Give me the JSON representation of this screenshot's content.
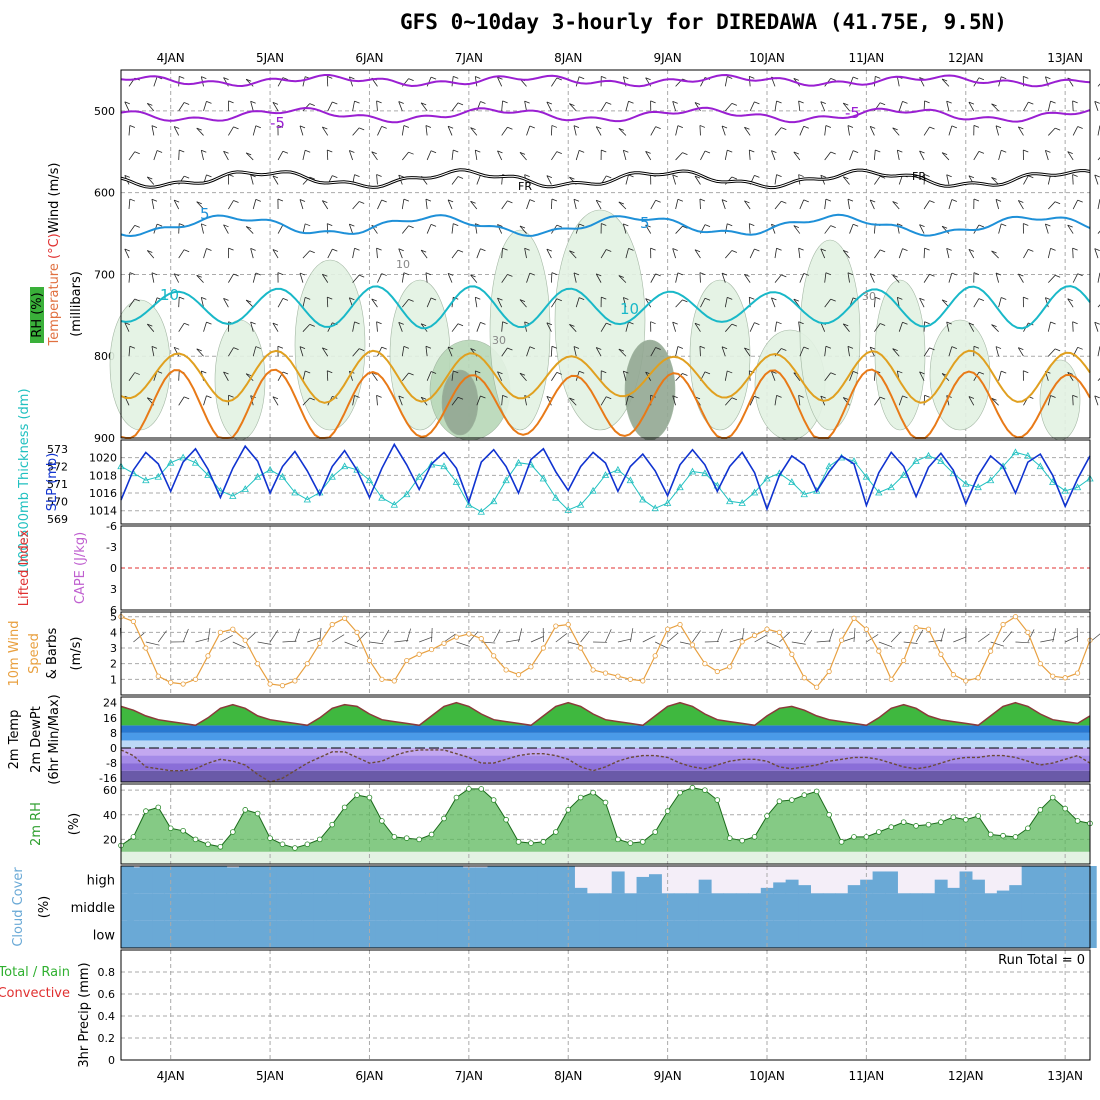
{
  "title": "GFS 0~10day 3-hourly for DIREDAWA (41.75E, 9.5N)",
  "colors": {
    "wind_purple": "#9a1fd2",
    "freezing": "#000000",
    "temp_blue": "#1e90d8",
    "temp_teal": "#19b8c8",
    "temp_gold": "#e0a020",
    "temp_orange": "#e87a18",
    "rh_light": "#e3f2e3",
    "rh_mid": "#b8d8b8",
    "rh_dark": "#93a893",
    "slp": "#1033d0",
    "thickness": "#20c0c0",
    "lifted": "#e03030",
    "cape": "#c060d0",
    "wind10": "#e8a040",
    "rh2m": "#30a030",
    "cloud": "#6aa9d6",
    "rain": "#30b030",
    "convective": "#e03030"
  },
  "chart_data": [
    {
      "type": "line",
      "panel": "upper-air",
      "title": "Temperature (°C) / RH (%) / Wind (m/s)",
      "ylabel": "(millibars)",
      "label_rh": "RH (%)",
      "label_temperature": "Temperature",
      "label_temperature_unit": "(°C)",
      "label_wind": "Wind (m/s)",
      "ylim": [
        900,
        450
      ],
      "yticks": [
        500,
        600,
        700,
        800,
        900
      ],
      "xlabels": [
        "4JAN",
        "5JAN",
        "6JAN",
        "7JAN",
        "8JAN",
        "9JAN",
        "10JAN",
        "11JAN",
        "12JAN",
        "13JAN"
      ],
      "x_start_day": 3.5,
      "x_end_day": 13.25,
      "contour_labels": [
        "-5",
        "-5",
        "FR",
        "FR",
        "5",
        "5",
        "10",
        "10",
        "10",
        "30",
        "30"
      ],
      "series": [
        {
          "name": "-5°C upper",
          "color": "#9a1fd2",
          "base": 463,
          "amp": 4,
          "kind": "flat"
        },
        {
          "name": "-5°C",
          "color": "#9a1fd2",
          "base": 505,
          "amp": 6,
          "kind": "flat"
        },
        {
          "name": "FR (0°C)",
          "color": "#000000",
          "base": 583,
          "amp": 8,
          "kind": "flat"
        },
        {
          "name": "5°C",
          "color": "#1e90d8",
          "base": 640,
          "amp": 10,
          "kind": "flat"
        },
        {
          "name": "10°C",
          "color": "#19b8c8",
          "base": 740,
          "amp": 22,
          "kind": "diurnal"
        },
        {
          "name": "15°C",
          "color": "#e0a020",
          "base": 825,
          "amp": 28,
          "kind": "diurnal"
        },
        {
          "name": "20°C",
          "color": "#e87a18",
          "base": 860,
          "amp": 40,
          "kind": "diurnal"
        }
      ]
    },
    {
      "type": "line",
      "panel": "slp-thickness",
      "label_thickness": "1000-500mb Thickness (dm)",
      "label_slp": "SLP (mb)",
      "thickness_ticks": [
        569,
        570,
        571,
        572,
        573
      ],
      "slp_ticks": [
        1014,
        1016,
        1018,
        1020
      ],
      "slp_values": [
        1015.2,
        1018.6,
        1020.6,
        1019.3,
        1016.2,
        1019.5,
        1021,
        1018.7,
        1015.5,
        1018.8,
        1021.3,
        1019.6,
        1016,
        1019,
        1020.7,
        1018.5,
        1015.8,
        1019,
        1020.8,
        1018.6,
        1015.5,
        1018.8,
        1021.5,
        1019.2,
        1016.4,
        1019.3,
        1020.6,
        1018.8,
        1015,
        1019.5,
        1020.9,
        1019,
        1016,
        1019.8,
        1021,
        1018.4,
        1016.3,
        1019,
        1020.6,
        1019.4,
        1016.2,
        1019,
        1020.4,
        1018.5,
        1015.7,
        1019.2,
        1020.9,
        1019.2,
        1016.2,
        1019,
        1020.6,
        1018.3,
        1014.2,
        1018,
        1020.2,
        1019.2,
        1016.2,
        1018.4,
        1020.2,
        1019.3,
        1014.6,
        1018.3,
        1020.6,
        1019,
        1015.6,
        1018.9,
        1020.5,
        1018.6,
        1014.8,
        1018,
        1020.2,
        1019,
        1016,
        1019.5,
        1020.4,
        1018,
        1014.5,
        1017.6,
        1020.2
      ],
      "thickness_values": [
        572,
        571.6,
        571.2,
        571.4,
        572.2,
        572.5,
        572.2,
        571.5,
        570.6,
        570.3,
        570.7,
        571.4,
        571.8,
        571.4,
        570.5,
        570.1,
        570.5,
        571.4,
        572,
        571.8,
        571.2,
        570.2,
        569.8,
        570.4,
        571.4,
        572.1,
        572,
        571.1,
        569.8,
        569.4,
        570,
        571.2,
        572.2,
        572.1,
        571.3,
        570.2,
        569.5,
        569.8,
        570.6,
        571.5,
        571.8,
        571.2,
        570.1,
        569.6,
        569.9,
        570.8,
        571.7,
        571.6,
        570.9,
        570,
        569.9,
        570.5,
        571.3,
        571.6,
        571.1,
        570.4,
        570.6,
        572,
        572.5,
        572.3,
        571.4,
        570.5,
        570.8,
        571.5,
        572.3,
        572.6,
        572.3,
        571.6,
        571,
        570.8,
        571.2,
        572,
        572.8,
        572.6,
        572,
        571.1,
        570.6,
        570.8,
        571.3
      ]
    },
    {
      "type": "line",
      "panel": "stability",
      "label_lifted": "Lifted Index",
      "label_cape": "CAPE (J/kg)",
      "li_ticks": [
        "-6",
        "-3",
        "0",
        "3",
        "6"
      ],
      "li_values": [],
      "cape_values": []
    },
    {
      "type": "line",
      "panel": "wind10m",
      "label_wind10": "10m Wind",
      "label_speed": "Speed",
      "label_barbs": "& Barbs",
      "unit": "(m/s)",
      "yticks": [
        1,
        2,
        3,
        4,
        5
      ],
      "values": [
        5,
        4.7,
        3,
        1.2,
        0.8,
        0.7,
        1,
        2.5,
        4,
        4.2,
        3.5,
        2,
        0.7,
        0.6,
        0.9,
        2,
        3.3,
        4.5,
        4.9,
        4,
        2.2,
        1,
        0.9,
        2.2,
        2.6,
        2.9,
        3.3,
        3.7,
        3.9,
        3.6,
        2.5,
        1.6,
        1.3,
        1.8,
        3,
        4.4,
        4.5,
        3,
        1.6,
        1.4,
        1.2,
        1,
        0.9,
        2.5,
        4.2,
        4.5,
        3.2,
        2,
        1.5,
        1.8,
        3.4,
        3.8,
        4.2,
        4,
        2.6,
        1.1,
        0.5,
        1.5,
        3.5,
        4.9,
        4.2,
        2.8,
        1,
        2.2,
        4.3,
        4.2,
        2.6,
        1.3,
        0.9,
        1.1,
        2.8,
        4.5,
        5,
        4,
        2,
        1.2,
        1.1,
        1.4,
        3.5
      ]
    },
    {
      "type": "area",
      "panel": "temp2m",
      "label_temp": "2m Temp",
      "label_dewpt": "2m DewPt",
      "label_minmax": "(6hr Min/Max)",
      "yticks": [
        "-16",
        "-8",
        "0",
        "8",
        "16",
        "24"
      ],
      "temp_values": [
        22,
        20,
        17,
        15,
        14,
        13,
        12,
        16,
        21,
        23,
        21,
        17,
        15,
        14,
        13,
        12,
        16,
        21,
        23,
        22,
        18,
        15,
        14,
        13,
        12,
        17,
        22,
        24,
        22,
        18,
        15,
        14,
        13,
        12,
        17,
        22,
        24,
        22,
        18,
        15,
        14,
        13,
        12,
        17,
        22,
        24,
        22,
        18,
        15,
        14,
        13,
        12,
        17,
        21,
        22,
        20,
        17,
        15,
        14,
        13,
        12,
        16,
        21,
        23,
        21,
        17,
        15,
        14,
        13,
        12,
        17,
        22,
        24,
        22,
        18,
        15,
        14,
        13,
        17
      ],
      "dewpt_values": [
        -1,
        -4,
        -10,
        -11,
        -12,
        -12,
        -11,
        -8,
        -6,
        -7,
        -9,
        -14,
        -18,
        -16,
        -12,
        -8,
        -5,
        -2,
        -2,
        -5,
        -8,
        -7,
        -4,
        -2,
        -1,
        -1,
        -1,
        -3,
        -5,
        -8,
        -8,
        -6,
        -4,
        -3,
        -3,
        -4,
        -6,
        -10,
        -12,
        -10,
        -7,
        -5,
        -4,
        -4,
        -5,
        -8,
        -10,
        -11,
        -9,
        -7,
        -6,
        -6,
        -7,
        -10,
        -11,
        -10,
        -9,
        -7,
        -6,
        -5,
        -5,
        -6,
        -8,
        -10,
        -11,
        -10,
        -8,
        -6,
        -5,
        -5,
        -4,
        -4,
        -5,
        -7,
        -9,
        -8,
        -6,
        -4,
        -8
      ]
    },
    {
      "type": "area",
      "panel": "rh2m",
      "label": "2m RH",
      "unit": "(%)",
      "yticks": [
        20,
        40,
        60
      ],
      "values": [
        15,
        22,
        43,
        46,
        29,
        27,
        20,
        16,
        14,
        26,
        44,
        41,
        21,
        16,
        13,
        16,
        20,
        32,
        46,
        56,
        54,
        35,
        22,
        21,
        20,
        24,
        37,
        54,
        61,
        61,
        52,
        36,
        18,
        17,
        18,
        26,
        44,
        54,
        58,
        50,
        20,
        17,
        18,
        26,
        43,
        58,
        62,
        60,
        52,
        21,
        19,
        22,
        39,
        51,
        52,
        56,
        59,
        40,
        18,
        22,
        22,
        26,
        30,
        34,
        31,
        32,
        34,
        38,
        36,
        39,
        24,
        23,
        22,
        29,
        44,
        54,
        45,
        35,
        33
      ]
    },
    {
      "type": "area",
      "panel": "cloud",
      "label": "Cloud Cover",
      "unit": "(%)",
      "levels": [
        "high",
        "middle",
        "low"
      ],
      "high_values": [
        100,
        95,
        100,
        100,
        100,
        100,
        100,
        100,
        100,
        95,
        100,
        100,
        100,
        100,
        100,
        100,
        100,
        100,
        100,
        100,
        100,
        100,
        100,
        100,
        100,
        100,
        100,
        100,
        95,
        95,
        100,
        100,
        100,
        100,
        100,
        100,
        100,
        20,
        0,
        0,
        80,
        0,
        60,
        70,
        0,
        0,
        0,
        50,
        0,
        0,
        0,
        0,
        20,
        40,
        50,
        30,
        0,
        0,
        0,
        30,
        50,
        80,
        80,
        0,
        0,
        0,
        50,
        20,
        80,
        50,
        0,
        10,
        30,
        100,
        100,
        100,
        100,
        100,
        100
      ],
      "middle_values": [
        100,
        100,
        100,
        100,
        100,
        100,
        100,
        100,
        100,
        100,
        100,
        100,
        100,
        100,
        100,
        100,
        100,
        100,
        100,
        100,
        100,
        100,
        100,
        100,
        100,
        100,
        100,
        100,
        100,
        100,
        100,
        100,
        100,
        100,
        100,
        100,
        100,
        100,
        100,
        100,
        100,
        100,
        100,
        100,
        100,
        100,
        100,
        100,
        100,
        100,
        100,
        100,
        100,
        100,
        100,
        100,
        100,
        100,
        100,
        100,
        100,
        100,
        100,
        100,
        100,
        100,
        100,
        100,
        100,
        100,
        100,
        100,
        100,
        100,
        100,
        100,
        100,
        100,
        100
      ],
      "low_values": [
        100,
        100,
        100,
        100,
        100,
        100,
        100,
        100,
        100,
        100,
        100,
        100,
        100,
        100,
        100,
        100,
        100,
        100,
        100,
        100,
        100,
        100,
        100,
        100,
        100,
        100,
        100,
        100,
        100,
        100,
        100,
        100,
        100,
        100,
        100,
        100,
        100,
        100,
        100,
        100,
        100,
        100,
        100,
        100,
        100,
        100,
        100,
        100,
        100,
        100,
        100,
        100,
        100,
        100,
        100,
        100,
        100,
        100,
        100,
        100,
        100,
        100,
        100,
        100,
        100,
        100,
        100,
        100,
        100,
        100,
        100,
        100,
        100,
        100,
        100,
        100,
        100,
        100,
        100
      ]
    },
    {
      "type": "bar",
      "panel": "precip",
      "label_total_rain": "Total / Rain",
      "label_convective": "Convective",
      "ylabel": "3hr Precip (mm)",
      "yticks": [
        "0",
        "0.2",
        "0.4",
        "0.6",
        "0.8"
      ],
      "ylim": [
        0,
        1
      ],
      "run_total_text": "Run Total = 0",
      "values": []
    }
  ]
}
